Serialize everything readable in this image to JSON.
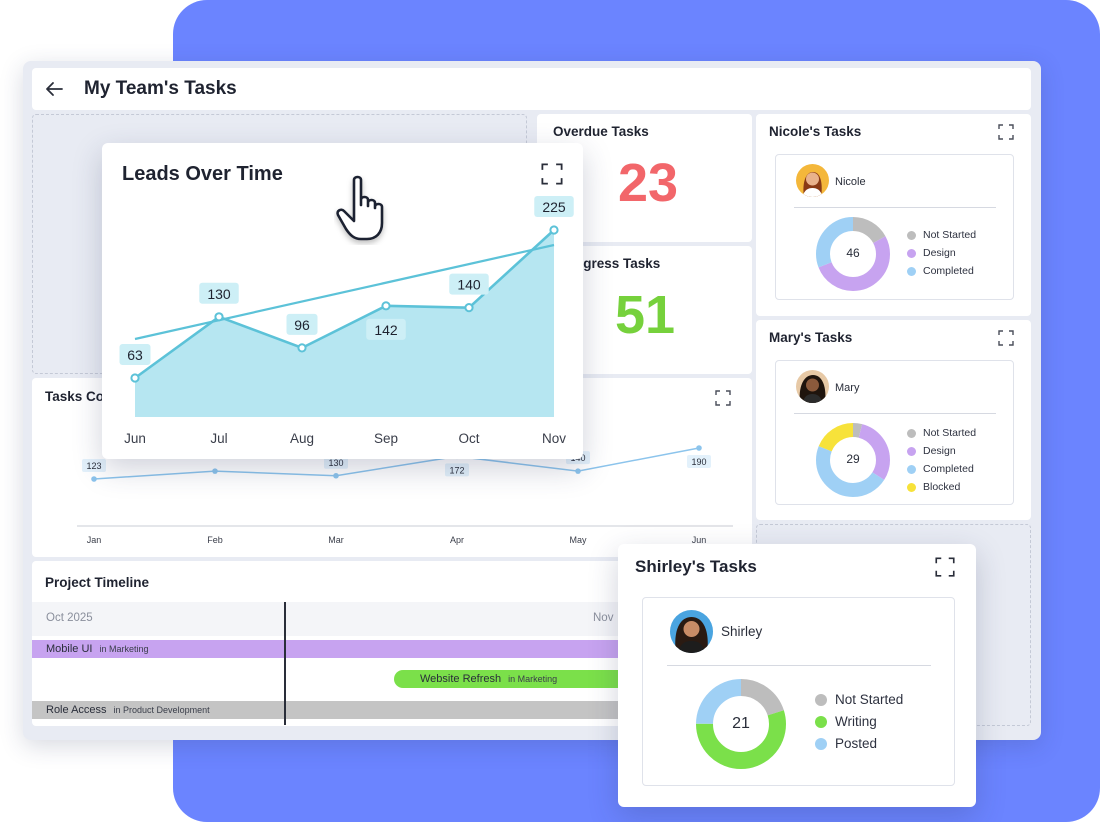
{
  "header": {
    "title": "My Team's Tasks"
  },
  "overdue": {
    "title": "Overdue Tasks",
    "value": "23",
    "color": "#f2666a"
  },
  "in_progress": {
    "title": "In Progress Tasks",
    "visible_title": "ogress Tasks",
    "value": "51",
    "color": "#76d13c"
  },
  "nicole": {
    "title": "Nicole's Tasks",
    "name": "Nicole",
    "total": "46",
    "legend": [
      {
        "label": "Not Started",
        "color": "#bdbdbd"
      },
      {
        "label": "Design",
        "color": "#c7a3f0"
      },
      {
        "label": "Completed",
        "color": "#9fd0f5"
      }
    ],
    "segments": [
      0.17,
      0.52,
      0.31
    ]
  },
  "mary": {
    "title": "Mary's Tasks",
    "name": "Mary",
    "total": "29",
    "legend": [
      {
        "label": "Not Started",
        "color": "#bdbdbd"
      },
      {
        "label": "Design",
        "color": "#c7a3f0"
      },
      {
        "label": "Completed",
        "color": "#9fd0f5"
      },
      {
        "label": "Blocked",
        "color": "#f7e23a"
      }
    ],
    "segments": [
      0.04,
      0.3,
      0.47,
      0.19
    ]
  },
  "shirley": {
    "title": "Shirley's Tasks",
    "name": "Shirley",
    "total": "21",
    "legend": [
      {
        "label": "Not Started",
        "color": "#bdbdbd"
      },
      {
        "label": "Writing",
        "color": "#7be04a"
      },
      {
        "label": "Posted",
        "color": "#9fd0f5"
      }
    ],
    "segments": [
      0.2,
      0.55,
      0.25
    ]
  },
  "tasks_completed": {
    "visible_title": "Tasks Co",
    "chart_data": {
      "type": "line",
      "categories": [
        "Jan",
        "Feb",
        "Mar",
        "Apr",
        "May",
        "Jun"
      ],
      "values": [
        123,
        140,
        130,
        172,
        140,
        190
      ],
      "visible_labels": [
        "123",
        "",
        "130",
        "172",
        "140",
        "190"
      ]
    }
  },
  "leads": {
    "title": "Leads Over Time",
    "chart_data": {
      "type": "area",
      "title": "Leads Over Time",
      "categories": [
        "Jun",
        "Jul",
        "Aug",
        "Sep",
        "Oct",
        "Nov"
      ],
      "values": [
        63,
        130,
        96,
        142,
        140,
        225
      ],
      "labels": [
        "63",
        "130",
        "96",
        "142",
        "140",
        "225"
      ]
    }
  },
  "timeline": {
    "title": "Project Timeline",
    "months": [
      "Oct 2025",
      "Nov"
    ],
    "bars": [
      {
        "label": "Mobile UI",
        "sub": "in Marketing",
        "color": "#c7a3f0"
      },
      {
        "label": "Website Refresh",
        "sub": "in Marketing",
        "color": "#7be04a"
      },
      {
        "label": "Role Access",
        "sub": "in Product Development",
        "color": "#c4c4c4"
      }
    ]
  }
}
